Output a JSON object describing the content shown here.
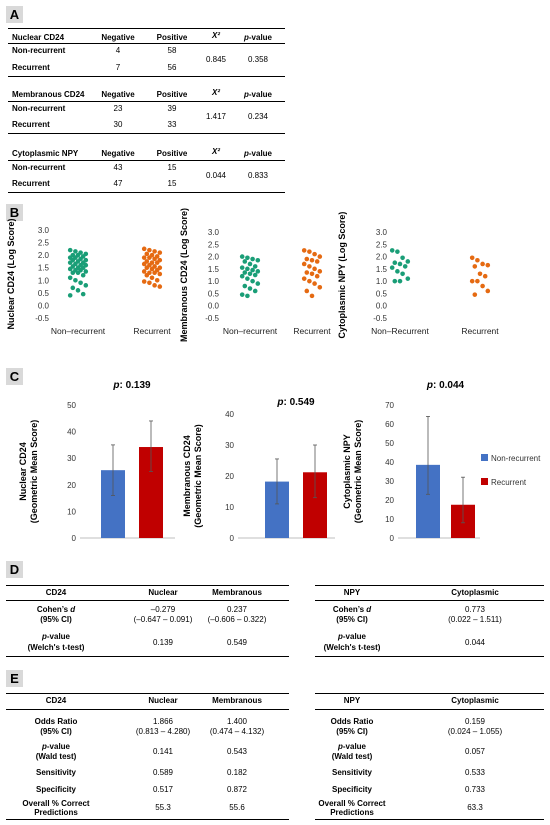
{
  "panels": {
    "a": "A",
    "b": "B",
    "c": "C",
    "d": "D",
    "e": "E"
  },
  "table_a": {
    "header": [
      "Negative",
      "Positive",
      "X²",
      "p-value"
    ],
    "blocks": [
      {
        "title": "Nuclear CD24",
        "rows": [
          [
            "Non-recurrent",
            "4",
            "58"
          ],
          [
            "Recurrent",
            "7",
            "56"
          ]
        ],
        "chi": "0.845",
        "p": "0.358"
      },
      {
        "title": "Membranous CD24",
        "rows": [
          [
            "Non-recurrent",
            "23",
            "39"
          ],
          [
            "Recurrent",
            "30",
            "33"
          ]
        ],
        "chi": "1.417",
        "p": "0.234"
      },
      {
        "title": "Cytoplasmic NPY",
        "rows": [
          [
            "Non-recurrent",
            "43",
            "15"
          ],
          [
            "Recurrent",
            "47",
            "15"
          ]
        ],
        "chi": "0.044",
        "p": "0.833"
      }
    ]
  },
  "chart_data": [
    {
      "type": "scatter",
      "ylabel": "Nuclear CD24 (Log Score)",
      "ylim": [
        -0.5,
        3.0
      ],
      "yticks": [
        "3.0",
        "2.5",
        "2.0",
        "1.5",
        "1.0",
        "0.5",
        "0.0",
        "-0.5"
      ],
      "categories": [
        "Non–recurrent",
        "Recurrent"
      ],
      "series": [
        {
          "values": [
            2.2,
            2.15,
            2.1,
            2.05,
            2.0,
            2.0,
            1.95,
            1.9,
            1.9,
            1.85,
            1.8,
            1.8,
            1.75,
            1.7,
            1.7,
            1.65,
            1.6,
            1.6,
            1.55,
            1.5,
            1.5,
            1.45,
            1.4,
            1.4,
            1.35,
            1.3,
            1.3,
            1.2,
            1.1,
            1.0,
            0.9,
            0.8,
            0.7,
            0.6,
            0.45,
            0.4
          ]
        },
        {
          "values": [
            2.25,
            2.2,
            2.15,
            2.1,
            2.05,
            2.0,
            1.95,
            1.9,
            1.9,
            1.85,
            1.8,
            1.75,
            1.7,
            1.7,
            1.65,
            1.6,
            1.55,
            1.5,
            1.5,
            1.45,
            1.4,
            1.35,
            1.3,
            1.3,
            1.25,
            1.2,
            1.1,
            1.0,
            0.95,
            0.9,
            0.8,
            0.75
          ]
        }
      ]
    },
    {
      "type": "scatter",
      "ylabel": "Membranous CD24 (Log Score)",
      "ylim": [
        -0.5,
        3.0
      ],
      "yticks": [
        "3.0",
        "2.5",
        "2.0",
        "1.5",
        "1.0",
        "0.5",
        "0.0",
        "-0.5"
      ],
      "categories": [
        "Non–recurrent",
        "Recurrent"
      ],
      "series": [
        {
          "values": [
            2.0,
            1.95,
            1.9,
            1.85,
            1.8,
            1.7,
            1.6,
            1.55,
            1.5,
            1.45,
            1.4,
            1.35,
            1.3,
            1.25,
            1.2,
            1.1,
            1.0,
            0.9,
            0.8,
            0.7,
            0.6,
            0.45,
            0.4
          ]
        },
        {
          "values": [
            2.25,
            2.2,
            2.1,
            2.0,
            1.9,
            1.85,
            1.8,
            1.7,
            1.6,
            1.5,
            1.4,
            1.35,
            1.3,
            1.2,
            1.1,
            1.0,
            0.9,
            0.75,
            0.6,
            0.4
          ]
        }
      ]
    },
    {
      "type": "scatter",
      "ylabel": "Cytoplasmic NPY (Log Score)",
      "ylim": [
        -0.5,
        3.0
      ],
      "yticks": [
        "3.0",
        "2.5",
        "2.0",
        "1.5",
        "1.0",
        "0.5",
        "0.0",
        "-0.5"
      ],
      "categories": [
        "Non–Recurrent",
        "Recurrent"
      ],
      "series": [
        {
          "values": [
            2.25,
            2.2,
            1.95,
            1.8,
            1.75,
            1.7,
            1.6,
            1.55,
            1.4,
            1.3,
            1.1,
            1.0,
            1.0
          ]
        },
        {
          "values": [
            1.95,
            1.85,
            1.7,
            1.65,
            1.6,
            1.3,
            1.2,
            1.0,
            1.0,
            0.8,
            0.6,
            0.45
          ]
        }
      ]
    },
    {
      "type": "bar",
      "ylabel": [
        "Nuclear CD24",
        "(Geometric Mean Score)"
      ],
      "ylim": [
        0,
        50
      ],
      "yticks": [
        "0",
        "10",
        "20",
        "30",
        "40",
        "50"
      ],
      "annotation": "0.139",
      "series": [
        {
          "name": "Non-recurrent",
          "value": 25.5,
          "lo": 16,
          "hi": 35
        },
        {
          "name": "Recurrent",
          "value": 34.2,
          "lo": 25,
          "hi": 44
        }
      ]
    },
    {
      "type": "bar",
      "ylabel": [
        "Membranous CD24",
        "(Geometric Mean Score)"
      ],
      "ylim": [
        0,
        40
      ],
      "yticks": [
        "0",
        "10",
        "20",
        "30",
        "40"
      ],
      "annotation": "0.549",
      "series": [
        {
          "name": "Non-recurrent",
          "value": 18.2,
          "lo": 11,
          "hi": 25.5
        },
        {
          "name": "Recurrent",
          "value": 21.2,
          "lo": 13,
          "hi": 30
        }
      ]
    },
    {
      "type": "bar",
      "ylabel": [
        "Cytoplasmic NPY",
        "(Geometric Mean Score)"
      ],
      "ylim": [
        0,
        70
      ],
      "yticks": [
        "0",
        "10",
        "20",
        "30",
        "40",
        "50",
        "60",
        "70"
      ],
      "annotation": "0.044",
      "series": [
        {
          "name": "Non-recurrent",
          "value": 38.5,
          "lo": 23,
          "hi": 64
        },
        {
          "name": "Recurrent",
          "value": 17.5,
          "lo": 8,
          "hi": 32
        }
      ]
    }
  ],
  "chart_c": {
    "p_prefix": "p",
    "legend": [
      "Non-recurrent",
      "Recurrent"
    ],
    "colors": {
      "nonrec": "#4472c4",
      "rec": "#c00000",
      "dot_nonrec": "#1a9e77",
      "dot_rec": "#e56a12"
    }
  },
  "table_d": {
    "left": {
      "h": [
        "CD24",
        "Nuclear",
        "Membranous"
      ],
      "r1": {
        "l1": "Cohen's d",
        "l2": "(95% CI)",
        "v1a": "–0.279",
        "v1b": "(–0.647 – 0.091)",
        "v2a": "0.237",
        "v2b": "(–0.606 – 0.322)"
      },
      "r2": {
        "l1": "p-value",
        "l2": "(Welch's t-test)",
        "v1": "0.139",
        "v2": "0.549"
      }
    },
    "right": {
      "h": [
        "NPY",
        "Cytoplasmic"
      ],
      "r1": {
        "l1": "Cohen's d",
        "l2": "(95% CI)",
        "va": "0.773",
        "vb": "(0.022 – 1.511)"
      },
      "r2": {
        "l1": "p-value",
        "l2": "(Welch's t-test)",
        "v": "0.044"
      }
    }
  },
  "table_e": {
    "left": {
      "h": [
        "CD24",
        "Nuclear",
        "Membranous"
      ],
      "or": {
        "l1": "Odds Ratio",
        "l2": "(95% CI)",
        "v1a": "1.866",
        "v1b": "(0.813 – 4.280)",
        "v2a": "1.400",
        "v2b": "(0.474 – 4.132)"
      },
      "pv": {
        "l1": "p-value",
        "l2": "(Wald test)",
        "v1": "0.141",
        "v2": "0.543"
      },
      "sens": {
        "l": "Sensitivity",
        "v1": "0.589",
        "v2": "0.182"
      },
      "spec": {
        "l": "Specificity",
        "v1": "0.517",
        "v2": "0.872"
      },
      "ocp": {
        "l1": "Overall % Correct",
        "l2": "Predictions",
        "v1": "55.3",
        "v2": "55.6"
      }
    },
    "right": {
      "h": [
        "NPY",
        "Cytoplasmic"
      ],
      "or": {
        "l1": "Odds Ratio",
        "l2": "(95% CI)",
        "va": "0.159",
        "vb": "(0.024 – 1.055)"
      },
      "pv": {
        "l1": "p-value",
        "l2": "(Wald test)",
        "v": "0.057"
      },
      "sens": {
        "l": "Sensitivity",
        "v": "0.533"
      },
      "spec": {
        "l": "Specificity",
        "v": "0.733"
      },
      "ocp": {
        "l1": "Overall % Correct",
        "l2": "Predictions",
        "v": "63.3"
      }
    }
  }
}
